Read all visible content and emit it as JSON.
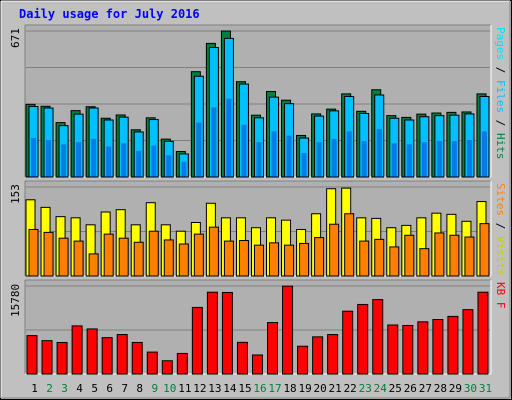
{
  "chart_data": {
    "type": "bar",
    "title": "Daily usage for July 2016",
    "categories": [
      "1",
      "2",
      "3",
      "4",
      "5",
      "6",
      "7",
      "8",
      "9",
      "10",
      "11",
      "12",
      "13",
      "14",
      "15",
      "16",
      "17",
      "18",
      "19",
      "20",
      "21",
      "22",
      "23",
      "24",
      "25",
      "26",
      "27",
      "28",
      "29",
      "30",
      "31"
    ],
    "weekend_days": [
      "2",
      "3",
      "9",
      "10",
      "16",
      "17",
      "23",
      "24",
      "30",
      "31"
    ],
    "colors": {
      "hits": "#008040",
      "files": "#00c0ff",
      "pages": "#00e0ff",
      "visits": "#ffff00",
      "sites": "#ff8000",
      "kbytes": "#ff0000",
      "title": "#0000ff",
      "weekend_label": "#008040",
      "weekday_label": "#000000",
      "background": "#c0c0c0",
      "plot_bg": "#b0b0b0"
    },
    "panels": [
      {
        "id": "hits_files_pages",
        "ymax_label": "671",
        "ylim": [
          0,
          671
        ],
        "legend": [
          {
            "text": "Hits",
            "color": "#008040"
          },
          {
            "text": "Files",
            "color": "#00c0ff"
          },
          {
            "text": "Pages",
            "color": "#00e0ff"
          }
        ],
        "series": [
          {
            "name": "Hits",
            "values": [
              334,
              325,
              250,
              305,
              323,
              270,
              285,
              217,
              272,
              174,
              117,
              484,
              614,
              671,
              438,
              284,
              393,
              353,
              191,
              290,
              312,
              382,
              302,
              401,
              282,
              274,
              289,
              294,
              297,
              299,
              382
            ]
          },
          {
            "name": "Files",
            "values": [
              324,
              317,
              236,
              289,
              317,
              262,
              275,
              207,
              264,
              164,
              106,
              463,
              595,
              637,
              427,
              272,
              367,
              337,
              179,
              280,
              304,
              370,
              292,
              377,
              270,
              262,
              277,
              282,
              284,
              290,
              370
            ]
          },
          {
            "name": "Pages",
            "values": [
              180,
              170,
              150,
              160,
              175,
              140,
              155,
              120,
              145,
              100,
              70,
              250,
              320,
              360,
              240,
              160,
              210,
              190,
              110,
              160,
              175,
              210,
              165,
              220,
              155,
              150,
              160,
              165,
              165,
              170,
              210
            ]
          }
        ]
      },
      {
        "id": "visits_sites",
        "ymax_label": "153",
        "ylim": [
          0,
          153
        ],
        "legend": [
          {
            "text": "Visits",
            "color": "#cccc00"
          },
          {
            "text": "Sites",
            "color": "#ff8000"
          }
        ],
        "series": [
          {
            "name": "Visits",
            "values": [
              131,
              118,
              102,
              100,
              88,
              110,
              114,
              88,
              126,
              88,
              77,
              92,
              125,
              100,
              100,
              83,
              100,
              96,
              80,
              107,
              150,
              151,
              100,
              99,
              83,
              87,
              100,
              108,
              106,
              94,
              128
            ]
          },
          {
            "name": "Sites",
            "values": [
              80,
              75,
              65,
              60,
              38,
              72,
              65,
              58,
              77,
              62,
              55,
              72,
              84,
              60,
              61,
              53,
              57,
              53,
              56,
              66,
              89,
              107,
              60,
              63,
              50,
              70,
              47,
              74,
              70,
              67,
              90
            ]
          }
        ]
      },
      {
        "id": "kbytes",
        "ymax_label": "15780",
        "ylim": [
          0,
          15780
        ],
        "legend": [
          {
            "text": "KB F",
            "color": "#ff0000"
          }
        ],
        "series": [
          {
            "name": "KB F",
            "values": [
              6883,
              5980,
              5650,
              8630,
              8084,
              6520,
              7078,
              5656,
              3930,
              2380,
              3690,
              11940,
              14670,
              14620,
              5680,
              3410,
              9230,
              15760,
              4980,
              6660,
              7070,
              11260,
              12470,
              13340,
              8790,
              8700,
              9360,
              9770,
              10330,
              11540,
              14670
            ]
          }
        ]
      }
    ]
  }
}
